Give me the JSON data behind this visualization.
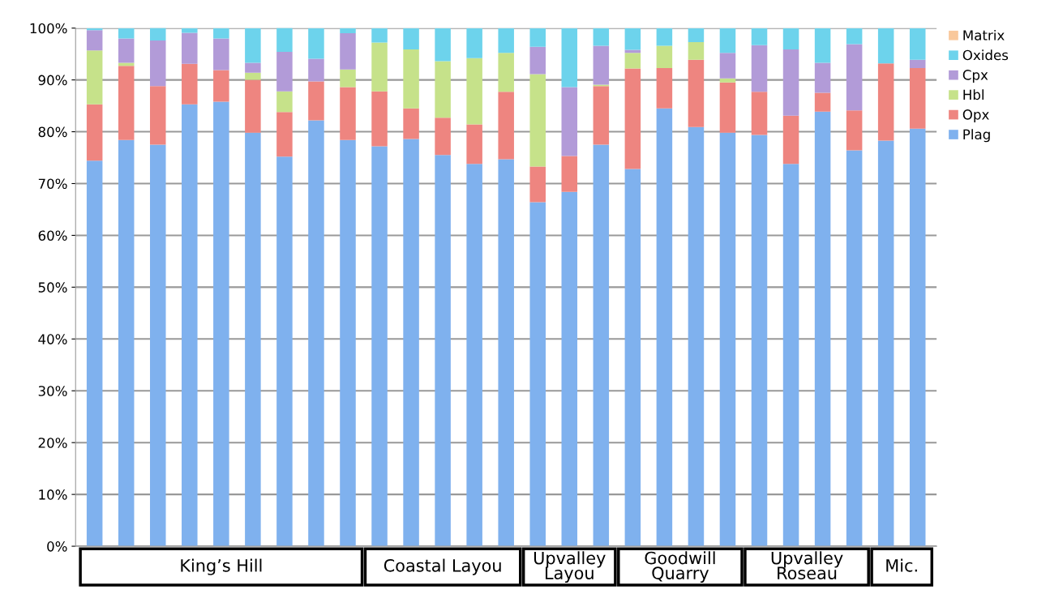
{
  "chart_data": {
    "type": "bar",
    "stacked": true,
    "categories": [
      null,
      null,
      null,
      null,
      null,
      null,
      null,
      null,
      null,
      null,
      null,
      null,
      null,
      null,
      null,
      null,
      null,
      null,
      null,
      null,
      null,
      null,
      null,
      null,
      null,
      null,
      null
    ],
    "series": [
      {
        "name": "Plag",
        "color": "#7fb1ee",
        "values": [
          74.4,
          78.4,
          77.5,
          85.3,
          85.8,
          79.8,
          75.2,
          82.2,
          78.4,
          77.2,
          78.6,
          75.5,
          73.8,
          74.7,
          66.4,
          68.4,
          77.5,
          72.8,
          84.5,
          80.9,
          79.8,
          79.4,
          73.8,
          83.9,
          76.4,
          78.3,
          80.6
        ]
      },
      {
        "name": "Opx",
        "color": "#ee8580",
        "values": [
          10.9,
          14.3,
          11.3,
          7.8,
          6.1,
          10.2,
          8.6,
          7.5,
          10.2,
          10.6,
          5.9,
          7.2,
          7.6,
          13.0,
          6.9,
          6.9,
          11.3,
          19.4,
          7.8,
          13.0,
          9.7,
          8.3,
          9.3,
          3.6,
          7.7,
          14.9,
          11.7
        ]
      },
      {
        "name": "Hbl",
        "color": "#c6e28a",
        "values": [
          10.4,
          0.6,
          0,
          0,
          0,
          1.4,
          4.0,
          0,
          3.4,
          9.4,
          11.4,
          10.9,
          12.8,
          7.5,
          17.8,
          0,
          0.3,
          3.0,
          4.3,
          3.4,
          0.8,
          0,
          0,
          0,
          0,
          0,
          0
        ]
      },
      {
        "name": "Cpx",
        "color": "#b29bd8",
        "values": [
          3.9,
          4.7,
          8.8,
          6.0,
          6.1,
          1.9,
          7.6,
          4.4,
          7.0,
          0,
          0,
          0,
          0,
          0,
          5.3,
          13.3,
          7.5,
          0.6,
          0,
          0,
          4.9,
          9.0,
          12.8,
          5.8,
          12.8,
          0,
          1.6
        ]
      },
      {
        "name": "Oxides",
        "color": "#6dd3ec",
        "values": [
          0.4,
          2.0,
          2.5,
          0.9,
          2.0,
          6.7,
          4.7,
          5.9,
          1.0,
          2.8,
          4.1,
          6.4,
          5.8,
          4.8,
          3.6,
          11.4,
          3.4,
          4.2,
          3.4,
          2.7,
          4.8,
          3.3,
          4.1,
          6.7,
          3.1,
          6.8,
          6.1
        ]
      },
      {
        "name": "Matrix",
        "color": "#f9c89b",
        "values": [
          0,
          0,
          0,
          0,
          0,
          0,
          0,
          0,
          0,
          0,
          0,
          0,
          0,
          0,
          0,
          0,
          0,
          0,
          0,
          0,
          0,
          0,
          0,
          0,
          0,
          0,
          0
        ]
      }
    ],
    "ylim": [
      0,
      100
    ],
    "yticks": [
      {
        "value": 0,
        "label": "0%"
      },
      {
        "value": 10,
        "label": "10%"
      },
      {
        "value": 20,
        "label": "20%"
      },
      {
        "value": 30,
        "label": "30%"
      },
      {
        "value": 40,
        "label": "40%"
      },
      {
        "value": 50,
        "label": "50%"
      },
      {
        "value": 60,
        "label": "60%"
      },
      {
        "value": 70,
        "label": "70%"
      },
      {
        "value": 80,
        "label": "80%"
      },
      {
        "value": 90,
        "label": "90%"
      },
      {
        "value": 100,
        "label": "100%"
      }
    ],
    "grid": "y",
    "legend": "top right",
    "annotations": [
      "King’s Hill",
      "Coastal Layou",
      "Upvalley\nLayou",
      "Goodwill\nQuarry",
      "Upvalley\nRoseau",
      "Mic."
    ]
  }
}
